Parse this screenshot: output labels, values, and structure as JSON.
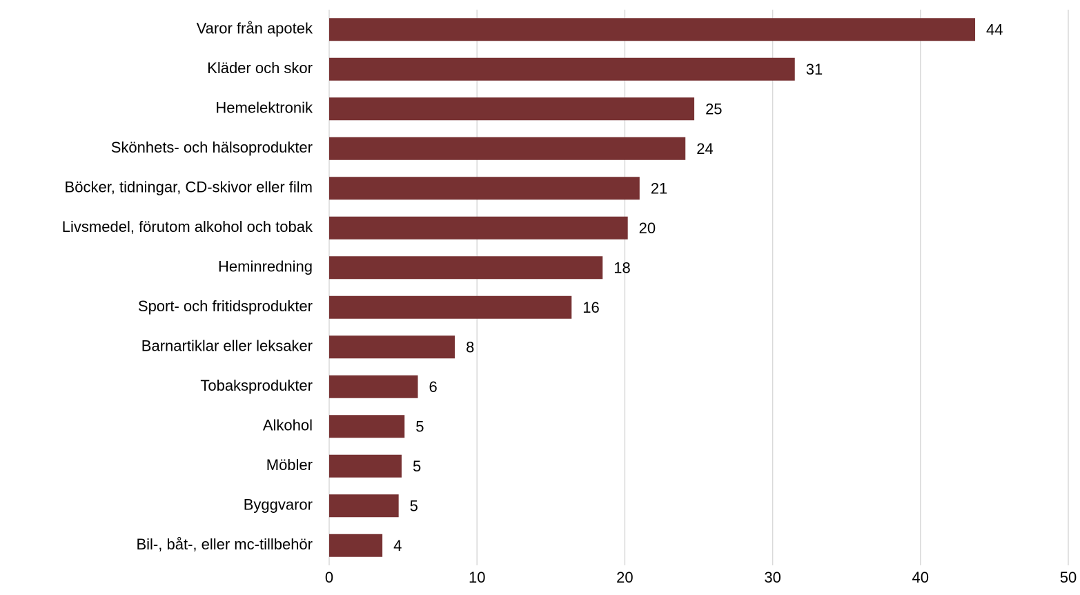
{
  "chart_data": {
    "type": "bar",
    "orientation": "horizontal",
    "categories": [
      "Varor från apotek",
      "Kläder och skor",
      "Hemelektronik",
      "Skönhets- och hälsoprodukter",
      "Böcker, tidningar, CD-skivor eller film",
      "Livsmedel, förutom alkohol och tobak",
      "Heminredning",
      "Sport- och fritidsprodukter",
      "Barnartiklar eller leksaker",
      "Tobaksprodukter",
      "Alkohol",
      "Möbler",
      "Byggvaror",
      "Bil-, båt-, eller mc-tillbehör"
    ],
    "values": [
      43.7,
      31.5,
      24.7,
      24.1,
      21.0,
      20.2,
      18.5,
      16.4,
      8.5,
      6.0,
      5.1,
      4.9,
      4.7,
      3.6
    ],
    "value_labels": [
      "44",
      "31",
      "25",
      "24",
      "21",
      "20",
      "18",
      "16",
      "8",
      "6",
      "5",
      "5",
      "5",
      "4"
    ],
    "xlim": [
      0,
      50
    ],
    "xticks": [
      0,
      10,
      20,
      30,
      40,
      50
    ],
    "xtick_labels": [
      "0",
      "10",
      "20",
      "30",
      "40",
      "50"
    ],
    "title": "",
    "xlabel": "",
    "ylabel": "",
    "grid": "vertical",
    "legend": "none",
    "bar_color": "#773132",
    "gridline_color": "#d9d9d9"
  }
}
